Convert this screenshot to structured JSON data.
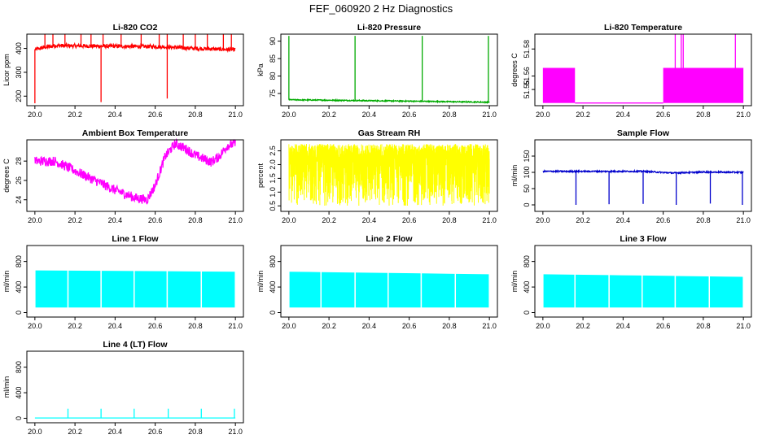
{
  "figure_title": "FEF_060920  2 Hz Diagnostics",
  "chart_data": [
    {
      "id": "co2",
      "type": "line",
      "title": "Li-820 CO2",
      "ylabel": "Licor ppm",
      "color": "#ff0000",
      "xlim": [
        20.0,
        21.0
      ],
      "ylim": [
        160,
        460
      ],
      "xticks": [
        20.0,
        20.2,
        20.4,
        20.6,
        20.8,
        21.0
      ],
      "xtick_labels": [
        "20.0",
        "20.2",
        "20.4",
        "20.6",
        "20.8",
        "21.0"
      ],
      "yticks": [
        200,
        300,
        400
      ],
      "ytick_labels": [
        "200",
        "300",
        "400"
      ],
      "baseline": [
        [
          20.0,
          395
        ],
        [
          20.05,
          405
        ],
        [
          20.1,
          412
        ],
        [
          20.3,
          410
        ],
        [
          20.6,
          408
        ],
        [
          20.8,
          400
        ],
        [
          20.98,
          395
        ]
      ],
      "noise": 8,
      "spikes_up": [
        20.05,
        20.09,
        20.15,
        20.23,
        20.28,
        20.34,
        20.43,
        20.53,
        20.62,
        20.66,
        20.74,
        20.8,
        20.86,
        20.94,
        20.98
      ],
      "spike_up_to": 460,
      "spikes_down": [
        [
          20.0,
          170
        ],
        [
          20.33,
          175
        ],
        [
          20.66,
          190
        ]
      ]
    },
    {
      "id": "pressure",
      "type": "line",
      "title": "Li-820 Pressure",
      "ylabel": "kPa",
      "color": "#00aa00",
      "xlim": [
        20.0,
        21.0
      ],
      "ylim": [
        71.5,
        92
      ],
      "xticks": [
        20.0,
        20.2,
        20.4,
        20.6,
        20.8,
        21.0
      ],
      "xtick_labels": [
        "20.0",
        "20.2",
        "20.4",
        "20.6",
        "20.8",
        "21.0"
      ],
      "yticks": [
        75,
        80,
        85,
        90
      ],
      "ytick_labels": [
        "75",
        "80",
        "85",
        "90"
      ],
      "baseline": [
        [
          20.0,
          73.2
        ],
        [
          20.3,
          73.0
        ],
        [
          20.6,
          72.8
        ],
        [
          21.0,
          72.5
        ]
      ],
      "noise": 0.15,
      "spikes_up": [
        20.0,
        20.33,
        20.665,
        20.995
      ],
      "spike_up_to": 91.5,
      "spikes_down": []
    },
    {
      "id": "temperature",
      "type": "line",
      "title": "Li-820 Temperature",
      "ylabel": "degrees C",
      "color": "#ff00ff",
      "xlim": [
        20.0,
        21.0
      ],
      "ylim": [
        51.538,
        51.591
      ],
      "xticks": [
        20.0,
        20.2,
        20.4,
        20.6,
        20.8,
        21.0
      ],
      "xtick_labels": [
        "20.0",
        "20.2",
        "20.4",
        "20.6",
        "20.8",
        "21.0"
      ],
      "yticks": [
        51.55,
        51.56,
        51.58
      ],
      "ytick_labels": [
        "51.55",
        "51.56",
        "51.58"
      ],
      "bands": [
        [
          20.0,
          20.16
        ],
        [
          20.6,
          21.0
        ]
      ],
      "band_range": [
        51.54,
        51.566
      ],
      "flat_level": 51.54,
      "spikes_up": [
        20.66,
        20.69,
        20.7,
        20.96
      ],
      "spike_up_to": 51.591
    },
    {
      "id": "box_temp",
      "type": "line",
      "title": "Ambient Box Temperature",
      "ylabel": "degrees C",
      "color": "#ff00ff",
      "xlim": [
        20.0,
        21.0
      ],
      "ylim": [
        22.8,
        30.2
      ],
      "xticks": [
        20.0,
        20.2,
        20.4,
        20.6,
        20.8,
        21.0
      ],
      "xtick_labels": [
        "20.0",
        "20.2",
        "20.4",
        "20.6",
        "20.8",
        "21.0"
      ],
      "yticks": [
        24,
        26,
        28
      ],
      "ytick_labels": [
        "24",
        "26",
        "28"
      ],
      "baseline": [
        [
          20.0,
          28.0
        ],
        [
          20.1,
          28.0
        ],
        [
          20.2,
          27.0
        ],
        [
          20.3,
          26.0
        ],
        [
          20.4,
          25.0
        ],
        [
          20.5,
          24.2
        ],
        [
          20.56,
          24.0
        ],
        [
          20.6,
          25.5
        ],
        [
          20.65,
          28.5
        ],
        [
          20.7,
          29.8
        ],
        [
          20.75,
          29.3
        ],
        [
          20.8,
          28.6
        ],
        [
          20.88,
          27.9
        ],
        [
          20.92,
          28.5
        ],
        [
          20.96,
          29.6
        ],
        [
          21.0,
          29.8
        ]
      ],
      "noise": 0.5,
      "spikes_up": [],
      "spikes_down": []
    },
    {
      "id": "rh",
      "type": "line",
      "title": "Gas Stream RH",
      "ylabel": "percent",
      "color": "#ffff00",
      "xlim": [
        20.0,
        21.0
      ],
      "ylim": [
        0.3,
        2.9
      ],
      "xticks": [
        20.0,
        20.2,
        20.4,
        20.6,
        20.8,
        21.0
      ],
      "xtick_labels": [
        "20.0",
        "20.2",
        "20.4",
        "20.6",
        "20.8",
        "21.0"
      ],
      "yticks": [
        0.5,
        1.0,
        1.5,
        2.0,
        2.5
      ],
      "ytick_labels": [
        "0.5",
        "1.0",
        "1.5",
        "2.0",
        "2.5"
      ],
      "band_lo": 0.5,
      "band_hi": 2.75,
      "dense": true
    },
    {
      "id": "sample_flow",
      "type": "line",
      "title": "Sample Flow",
      "ylabel": "ml/min",
      "color": "#0000cc",
      "xlim": [
        20.0,
        21.0
      ],
      "ylim": [
        -20,
        200
      ],
      "xticks": [
        20.0,
        20.2,
        20.4,
        20.6,
        20.8,
        21.0
      ],
      "xtick_labels": [
        "20.0",
        "20.2",
        "20.4",
        "20.6",
        "20.8",
        "21.0"
      ],
      "yticks": [
        0,
        50,
        100,
        150
      ],
      "ytick_labels": [
        "0",
        "50",
        "100",
        "150"
      ],
      "baseline": [
        [
          20.0,
          103
        ],
        [
          20.5,
          103
        ],
        [
          20.65,
          98
        ],
        [
          20.8,
          101
        ],
        [
          21.0,
          100
        ]
      ],
      "noise": 2,
      "spikes_up": [],
      "spikes_down": [
        [
          20.165,
          0
        ],
        [
          20.33,
          2
        ],
        [
          20.5,
          3
        ],
        [
          20.665,
          0
        ],
        [
          20.835,
          4
        ],
        [
          20.995,
          0
        ]
      ]
    },
    {
      "id": "line1",
      "type": "line",
      "title": "Line 1 Flow",
      "ylabel": "ml/min",
      "color": "#00ffff",
      "xlim": [
        20.0,
        21.0
      ],
      "ylim": [
        -70,
        1050
      ],
      "xticks": [
        20.0,
        20.2,
        20.4,
        20.6,
        20.8,
        21.0
      ],
      "xtick_labels": [
        "20.0",
        "20.2",
        "20.4",
        "20.6",
        "20.8",
        "21.0"
      ],
      "yticks": [
        0,
        400,
        800
      ],
      "ytick_labels": [
        "0",
        "400",
        "800"
      ],
      "band_lo": 80,
      "band_hi": 660,
      "hi_end": 640,
      "gaps": [
        20.165,
        20.33,
        20.495,
        20.66,
        20.83
      ]
    },
    {
      "id": "line2",
      "type": "line",
      "title": "Line 2 Flow",
      "ylabel": "ml/min",
      "color": "#00ffff",
      "xlim": [
        20.0,
        21.0
      ],
      "ylim": [
        -70,
        1050
      ],
      "xticks": [
        20.0,
        20.2,
        20.4,
        20.6,
        20.8,
        21.0
      ],
      "xtick_labels": [
        "20.0",
        "20.2",
        "20.4",
        "20.6",
        "20.8",
        "21.0"
      ],
      "yticks": [
        0,
        400,
        800
      ],
      "ytick_labels": [
        "0",
        "400",
        "800"
      ],
      "band_lo": 80,
      "band_hi": 640,
      "hi_end": 600,
      "gaps": [
        20.16,
        20.33,
        20.495,
        20.66,
        20.83
      ]
    },
    {
      "id": "line3",
      "type": "line",
      "title": "Line 3 Flow",
      "ylabel": "ml/min",
      "color": "#00ffff",
      "xlim": [
        20.0,
        21.0
      ],
      "ylim": [
        -70,
        1050
      ],
      "xticks": [
        20.0,
        20.2,
        20.4,
        20.6,
        20.8,
        21.0
      ],
      "xtick_labels": [
        "20.0",
        "20.2",
        "20.4",
        "20.6",
        "20.8",
        "21.0"
      ],
      "yticks": [
        0,
        400,
        800
      ],
      "ytick_labels": [
        "0",
        "400",
        "800"
      ],
      "band_lo": 80,
      "band_hi": 600,
      "hi_end": 560,
      "gaps": [
        20.16,
        20.33,
        20.495,
        20.66,
        20.83
      ]
    },
    {
      "id": "line4",
      "type": "line",
      "title": "Line 4 (LT) Flow",
      "ylabel": "ml/min",
      "color": "#00ffff",
      "xlim": [
        20.0,
        21.0
      ],
      "ylim": [
        -70,
        1050
      ],
      "xticks": [
        20.0,
        20.2,
        20.4,
        20.6,
        20.8,
        21.0
      ],
      "xtick_labels": [
        "20.0",
        "20.2",
        "20.4",
        "20.6",
        "20.8",
        "21.0"
      ],
      "yticks": [
        0,
        400,
        800
      ],
      "ytick_labels": [
        "0",
        "400",
        "800"
      ],
      "baseline": [
        [
          20.0,
          5
        ],
        [
          21.0,
          5
        ]
      ],
      "noise": 0,
      "spikes_up": [
        20.165,
        20.33,
        20.495,
        20.665,
        20.83,
        20.995
      ],
      "spike_up_to": 150,
      "spikes_down": []
    }
  ]
}
